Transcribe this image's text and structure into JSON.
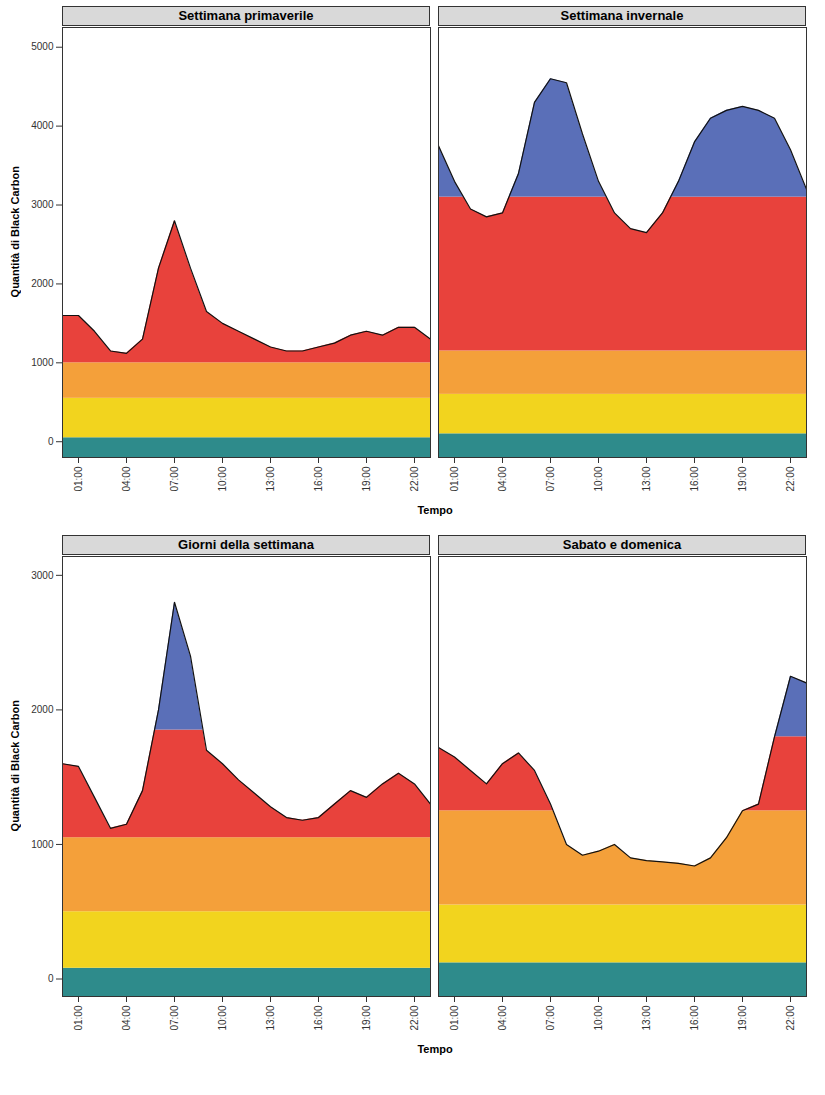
{
  "chart_data": [
    {
      "type": "area",
      "x_label": "Tempo",
      "y_label": "Quantità di Black Carbon",
      "x": [
        0,
        1,
        2,
        3,
        4,
        5,
        6,
        7,
        8,
        9,
        10,
        11,
        12,
        13,
        14,
        15,
        16,
        17,
        18,
        19,
        20,
        21,
        22,
        23
      ],
      "xlim": [
        0,
        23
      ],
      "xticks": [
        {
          "value": 1,
          "label": "01:00"
        },
        {
          "value": 4,
          "label": "04:00"
        },
        {
          "value": 7,
          "label": "07:00"
        },
        {
          "value": 10,
          "label": "10:00"
        },
        {
          "value": 13,
          "label": "13:00"
        },
        {
          "value": 16,
          "label": "16:00"
        },
        {
          "value": 19,
          "label": "19:00"
        },
        {
          "value": 22,
          "label": "22:00"
        }
      ],
      "ylim": [
        -200,
        5250
      ],
      "yticks": [
        0,
        1000,
        2000,
        3000,
        4000,
        5000
      ],
      "panels": [
        {
          "title": "Settimana primaverile",
          "values": [
            1600,
            1600,
            1400,
            1150,
            1120,
            1300,
            2200,
            2800,
            2200,
            1650,
            1500,
            1400,
            1300,
            1200,
            1150,
            1150,
            1200,
            1250,
            1350,
            1400,
            1350,
            1450,
            1450,
            1300
          ],
          "bands": [
            {
              "from": -200,
              "to": 50,
              "color": "#2e8b8b"
            },
            {
              "from": 50,
              "to": 550,
              "color": "#f2d41e"
            },
            {
              "from": 550,
              "to": 1000,
              "color": "#f4a03a"
            },
            {
              "from": 1000,
              "to": 3000,
              "color": "#e8423c"
            },
            {
              "from": 3000,
              "to": 5250,
              "color": "#5a6fb8"
            }
          ]
        },
        {
          "title": "Settimana invernale",
          "values": [
            3750,
            3300,
            2950,
            2850,
            2900,
            3400,
            4300,
            4600,
            4550,
            3900,
            3300,
            2900,
            2700,
            2650,
            2900,
            3300,
            3800,
            4100,
            4200,
            4250,
            4200,
            4100,
            3700,
            3200
          ],
          "bands": [
            {
              "from": -200,
              "to": 100,
              "color": "#2e8b8b"
            },
            {
              "from": 100,
              "to": 600,
              "color": "#f2d41e"
            },
            {
              "from": 600,
              "to": 1150,
              "color": "#f4a03a"
            },
            {
              "from": 1150,
              "to": 3100,
              "color": "#e8423c"
            },
            {
              "from": 3100,
              "to": 5250,
              "color": "#5a6fb8"
            }
          ]
        }
      ]
    },
    {
      "type": "area",
      "x_label": "Tempo",
      "y_label": "Quantità di Black Carbon",
      "x": [
        0,
        1,
        2,
        3,
        4,
        5,
        6,
        7,
        8,
        9,
        10,
        11,
        12,
        13,
        14,
        15,
        16,
        17,
        18,
        19,
        20,
        21,
        22,
        23
      ],
      "xlim": [
        0,
        23
      ],
      "xticks": [
        {
          "value": 1,
          "label": "01:00"
        },
        {
          "value": 4,
          "label": "04:00"
        },
        {
          "value": 7,
          "label": "07:00"
        },
        {
          "value": 10,
          "label": "10:00"
        },
        {
          "value": 13,
          "label": "13:00"
        },
        {
          "value": 16,
          "label": "16:00"
        },
        {
          "value": 19,
          "label": "19:00"
        },
        {
          "value": 22,
          "label": "22:00"
        }
      ],
      "ylim": [
        -130,
        3140
      ],
      "yticks": [
        0,
        1000,
        2000,
        3000
      ],
      "panels": [
        {
          "title": "Giorni della settimana",
          "values": [
            1600,
            1580,
            1350,
            1120,
            1150,
            1400,
            2000,
            2800,
            2400,
            1700,
            1600,
            1480,
            1380,
            1280,
            1200,
            1180,
            1200,
            1300,
            1400,
            1350,
            1450,
            1530,
            1450,
            1300
          ],
          "bands": [
            {
              "from": -130,
              "to": 80,
              "color": "#2e8b8b"
            },
            {
              "from": 80,
              "to": 500,
              "color": "#f2d41e"
            },
            {
              "from": 500,
              "to": 1050,
              "color": "#f4a03a"
            },
            {
              "from": 1050,
              "to": 1850,
              "color": "#e8423c"
            },
            {
              "from": 1850,
              "to": 3140,
              "color": "#5a6fb8"
            }
          ]
        },
        {
          "title": "Sabato e domenica",
          "values": [
            1720,
            1650,
            1550,
            1450,
            1600,
            1680,
            1550,
            1300,
            1000,
            920,
            950,
            1000,
            900,
            880,
            870,
            860,
            840,
            900,
            1050,
            1250,
            1300,
            1800,
            2250,
            2200
          ],
          "bands": [
            {
              "from": -130,
              "to": 120,
              "color": "#2e8b8b"
            },
            {
              "from": 120,
              "to": 550,
              "color": "#f2d41e"
            },
            {
              "from": 550,
              "to": 1250,
              "color": "#f4a03a"
            },
            {
              "from": 1250,
              "to": 1800,
              "color": "#e8423c"
            },
            {
              "from": 1800,
              "to": 3140,
              "color": "#5a6fb8"
            }
          ]
        }
      ]
    }
  ]
}
